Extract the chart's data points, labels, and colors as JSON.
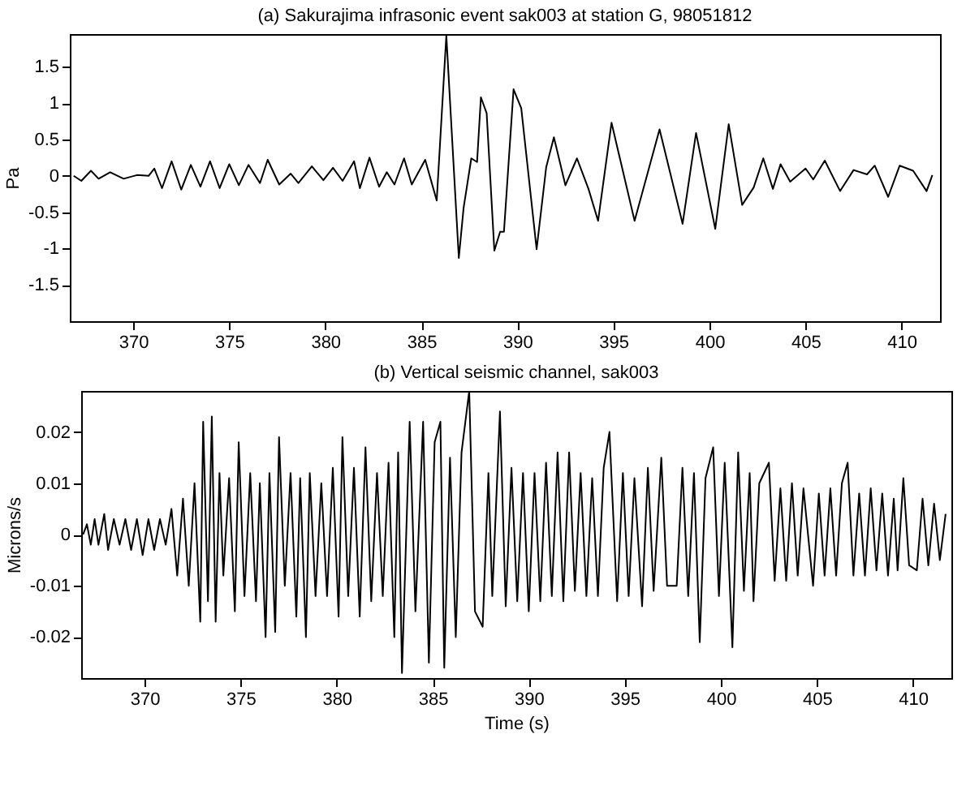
{
  "chart_data": [
    {
      "type": "line",
      "title": "(a) Sakurajima infrasonic event sak003 at station G, 98051812",
      "ylabel": "Pa",
      "xlim": [
        366.7,
        412
      ],
      "ylim": [
        -2,
        1.95
      ],
      "xticks": [
        370,
        375,
        380,
        385,
        390,
        395,
        400,
        405,
        410
      ],
      "yticks": [
        -1.5,
        -1,
        -0.5,
        0,
        0.5,
        1,
        1.5
      ],
      "marker": "none",
      "line_style": "solid",
      "series": [
        {
          "color": "#000000",
          "x": [
            366.9,
            367.3,
            367.8,
            368.2,
            368.8,
            369.5,
            370.2,
            370.8,
            371.1,
            371.5,
            372.0,
            372.5,
            373.0,
            373.5,
            374.0,
            374.5,
            375.0,
            375.5,
            376.0,
            376.6,
            377.0,
            377.6,
            378.2,
            378.6,
            379.3,
            379.9,
            380.4,
            380.9,
            381.5,
            381.8,
            382.3,
            382.8,
            383.2,
            383.6,
            384.1,
            384.5,
            385.2,
            385.8,
            386.3,
            386.95,
            387.2,
            387.6,
            387.9,
            388.1,
            388.4,
            388.8,
            389.1,
            389.3,
            389.8,
            390.2,
            391.0,
            391.5,
            391.9,
            392.5,
            393.1,
            393.7,
            394.2,
            394.9,
            396.1,
            397.4,
            398.6,
            399.3,
            400.3,
            401.0,
            401.7,
            402.3,
            402.8,
            403.3,
            403.7,
            404.2,
            405.0,
            405.4,
            406.0,
            406.8,
            407.5,
            408.2,
            408.6,
            409.3,
            409.9,
            410.6,
            411.3,
            411.6
          ],
          "values": [
            0,
            -0.07,
            0.07,
            -0.04,
            0.05,
            -0.04,
            0.01,
            0,
            0.1,
            -0.17,
            0.2,
            -0.19,
            0.15,
            -0.15,
            0.2,
            -0.17,
            0.16,
            -0.13,
            0.15,
            -0.1,
            0.22,
            -0.12,
            0.03,
            -0.1,
            0.13,
            -0.06,
            0.11,
            -0.07,
            0.2,
            -0.17,
            0.25,
            -0.15,
            0.05,
            -0.12,
            0.24,
            -0.12,
            0.22,
            -0.34,
            1.93,
            -1.13,
            -0.44,
            0.24,
            0.19,
            1.08,
            0.86,
            -1.03,
            -0.77,
            -0.77,
            1.19,
            0.93,
            -1.01,
            0.12,
            0.53,
            -0.13,
            0.24,
            -0.18,
            -0.62,
            0.73,
            -0.62,
            0.64,
            -0.66,
            0.59,
            -0.73,
            0.71,
            -0.4,
            -0.16,
            0.24,
            -0.18,
            0.16,
            -0.08,
            0.1,
            -0.05,
            0.21,
            -0.21,
            0.08,
            0.02,
            0.14,
            -0.29,
            0.14,
            0.07,
            -0.21,
            0.01
          ]
        }
      ]
    },
    {
      "type": "line",
      "title": "(b) Vertical seismic channel, sak003",
      "xlabel": "Time (s)",
      "ylabel": "Microns/s",
      "xlim": [
        366.7,
        412
      ],
      "ylim": [
        -0.028,
        0.028
      ],
      "xticks": [
        370,
        375,
        380,
        385,
        390,
        395,
        400,
        405,
        410
      ],
      "yticks": [
        -0.02,
        -0.01,
        0,
        0.01,
        0.02
      ],
      "marker": "none",
      "line_style": "solid",
      "series": [
        {
          "color": "#000000",
          "x": [
            366.8,
            367.0,
            367.2,
            367.4,
            367.6,
            367.9,
            368.1,
            368.4,
            368.7,
            369.0,
            369.3,
            369.6,
            369.9,
            370.2,
            370.5,
            370.8,
            371.1,
            371.4,
            371.7,
            372.0,
            372.3,
            372.6,
            372.9,
            373.05,
            373.3,
            373.5,
            373.7,
            373.9,
            374.1,
            374.4,
            374.7,
            374.9,
            375.2,
            375.5,
            375.8,
            376.0,
            376.3,
            376.5,
            376.8,
            377.0,
            377.3,
            377.6,
            377.9,
            378.1,
            378.4,
            378.6,
            378.9,
            379.2,
            379.5,
            379.8,
            380.1,
            380.3,
            380.6,
            380.9,
            381.2,
            381.5,
            381.8,
            382.1,
            382.4,
            382.7,
            383.0,
            383.2,
            383.4,
            383.8,
            384.1,
            384.5,
            384.8,
            385.1,
            385.4,
            385.6,
            385.9,
            386.2,
            386.5,
            386.9,
            387.2,
            387.6,
            387.9,
            388.1,
            388.5,
            388.8,
            389.1,
            389.4,
            389.7,
            390.0,
            390.3,
            390.6,
            390.9,
            391.2,
            391.5,
            391.8,
            392.1,
            392.4,
            392.7,
            393.0,
            393.3,
            393.6,
            393.9,
            394.2,
            394.6,
            394.9,
            395.2,
            395.5,
            395.9,
            396.2,
            396.5,
            396.9,
            397.2,
            397.7,
            398.0,
            398.3,
            398.6,
            398.9,
            399.2,
            399.6,
            399.9,
            400.2,
            400.6,
            400.9,
            401.2,
            401.5,
            401.7,
            402.0,
            402.5,
            402.8,
            403.1,
            403.4,
            403.7,
            404.0,
            404.3,
            404.8,
            405.1,
            405.4,
            405.7,
            406.0,
            406.3,
            406.6,
            406.9,
            407.2,
            407.5,
            407.8,
            408.1,
            408.4,
            408.7,
            409.0,
            409.2,
            409.5,
            409.8,
            410.2,
            410.5,
            410.8,
            411.1,
            411.4,
            411.7
          ],
          "values": [
            0,
            0.002,
            -0.002,
            0.003,
            -0.002,
            0.004,
            -0.003,
            0.003,
            -0.002,
            0.003,
            -0.003,
            0.003,
            -0.004,
            0.003,
            -0.003,
            0.003,
            -0.002,
            0.005,
            -0.008,
            0.007,
            -0.01,
            0.01,
            -0.017,
            0.022,
            -0.013,
            0.023,
            -0.017,
            0.012,
            -0.008,
            0.011,
            -0.015,
            0.018,
            -0.012,
            0.012,
            -0.013,
            0.01,
            -0.02,
            0.012,
            -0.019,
            0.019,
            -0.01,
            0.012,
            -0.016,
            0.011,
            -0.02,
            0.012,
            -0.012,
            0.01,
            -0.012,
            0.013,
            -0.016,
            0.019,
            -0.012,
            0.013,
            -0.016,
            0.017,
            -0.013,
            0.012,
            -0.012,
            0.014,
            -0.02,
            0.016,
            -0.027,
            0.022,
            -0.015,
            0.022,
            -0.025,
            0.018,
            0.022,
            -0.026,
            0.015,
            -0.02,
            0.016,
            0.028,
            -0.015,
            -0.018,
            0.012,
            -0.012,
            0.024,
            -0.014,
            0.013,
            -0.013,
            0.012,
            -0.015,
            0.012,
            -0.013,
            0.014,
            -0.012,
            0.016,
            -0.013,
            0.016,
            -0.011,
            0.012,
            -0.012,
            0.011,
            -0.012,
            0.013,
            0.02,
            -0.013,
            0.012,
            -0.012,
            0.011,
            -0.014,
            0.013,
            -0.011,
            0.015,
            -0.01,
            -0.01,
            0.013,
            -0.012,
            0.012,
            -0.021,
            0.011,
            0.017,
            -0.012,
            0.014,
            -0.022,
            0.016,
            -0.011,
            0.012,
            -0.013,
            0.01,
            0.014,
            -0.009,
            0.009,
            -0.009,
            0.01,
            -0.008,
            0.009,
            -0.01,
            0.008,
            -0.008,
            0.009,
            -0.008,
            0.01,
            0.014,
            -0.008,
            0.008,
            -0.008,
            0.009,
            -0.007,
            0.008,
            -0.008,
            0.007,
            -0.007,
            0.011,
            -0.006,
            -0.007,
            0.007,
            -0.006,
            0.006,
            -0.005,
            0.004
          ]
        }
      ]
    }
  ]
}
